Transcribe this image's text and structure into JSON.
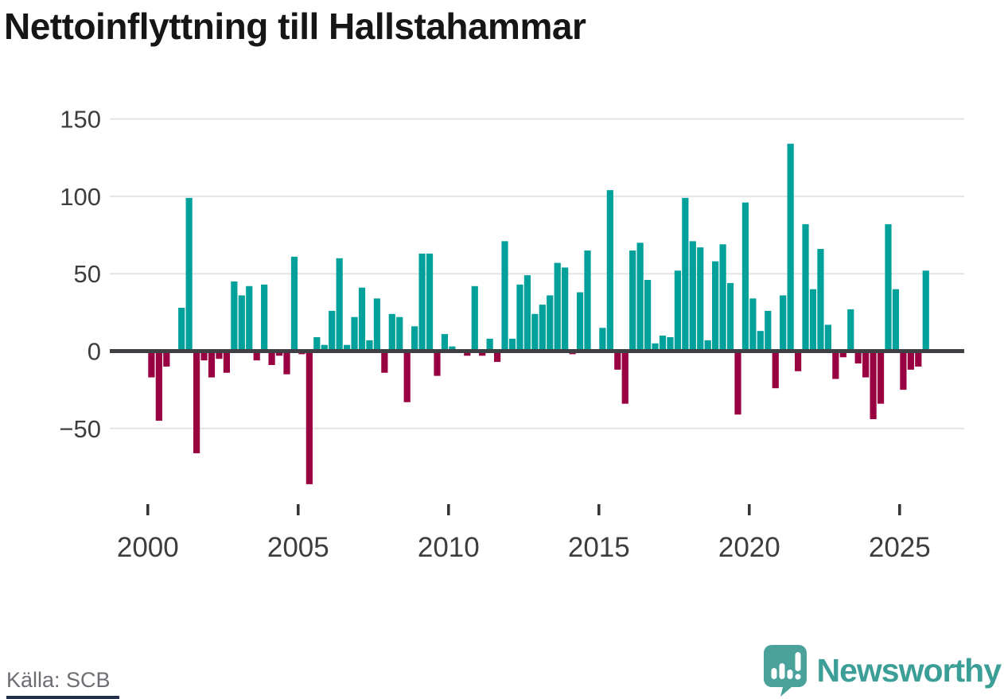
{
  "title": "Nettoinflyttning till Hallstahammar",
  "footer": {
    "source": "Källa: SCB",
    "brand": "Newsworthy"
  },
  "colors": {
    "positive": "#00a09b",
    "negative": "#990041",
    "grid": "#e3e3e3",
    "axis": "#3f4043",
    "tick_label": "#3d3d3d",
    "title": "#161616",
    "source_text": "#6d6d73",
    "brand_teal": "#3b9e97",
    "logo_bubble": "#4aa29a",
    "bottom_strip": "#243049"
  },
  "chart_data": {
    "type": "bar",
    "title": "Nettoinflyttning till Hallstahammar",
    "xlabel": "",
    "ylabel": "",
    "ylim": [
      -90,
      150
    ],
    "grid": "horizontal",
    "legend": "none",
    "frequency": "quarterly",
    "y_ticks": [
      {
        "v": 150,
        "label": "150"
      },
      {
        "v": 100,
        "label": "100"
      },
      {
        "v": 50,
        "label": "50"
      },
      {
        "v": 0,
        "label": "0"
      },
      {
        "v": -50,
        "label": "−50"
      }
    ],
    "x_ticks": [
      {
        "year": 2000,
        "label": "2000"
      },
      {
        "year": 2005,
        "label": "2005"
      },
      {
        "year": 2010,
        "label": "2010"
      },
      {
        "year": 2015,
        "label": "2015"
      },
      {
        "year": 2020,
        "label": "2020"
      },
      {
        "year": 2025,
        "label": "2025"
      }
    ],
    "start_year": 2000,
    "categories": [
      "2000 Q1",
      "2000 Q2",
      "2000 Q3",
      "2000 Q4",
      "2001 Q1",
      "2001 Q2",
      "2001 Q3",
      "2001 Q4",
      "2002 Q1",
      "2002 Q2",
      "2002 Q3",
      "2002 Q4",
      "2003 Q1",
      "2003 Q2",
      "2003 Q3",
      "2003 Q4",
      "2004 Q1",
      "2004 Q2",
      "2004 Q3",
      "2004 Q4",
      "2005 Q1",
      "2005 Q2",
      "2005 Q3",
      "2005 Q4",
      "2006 Q1",
      "2006 Q2",
      "2006 Q3",
      "2006 Q4",
      "2007 Q1",
      "2007 Q2",
      "2007 Q3",
      "2007 Q4",
      "2008 Q1",
      "2008 Q2",
      "2008 Q3",
      "2008 Q4",
      "2009 Q1",
      "2009 Q2",
      "2009 Q3",
      "2009 Q4",
      "2010 Q1",
      "2010 Q2",
      "2010 Q3",
      "2010 Q4",
      "2011 Q1",
      "2011 Q2",
      "2011 Q3",
      "2011 Q4",
      "2012 Q1",
      "2012 Q2",
      "2012 Q3",
      "2012 Q4",
      "2013 Q1",
      "2013 Q2",
      "2013 Q3",
      "2013 Q4",
      "2014 Q1",
      "2014 Q2",
      "2014 Q3",
      "2014 Q4",
      "2015 Q1",
      "2015 Q2",
      "2015 Q3",
      "2015 Q4",
      "2016 Q1",
      "2016 Q2",
      "2016 Q3",
      "2016 Q4",
      "2017 Q1",
      "2017 Q2",
      "2017 Q3",
      "2017 Q4",
      "2018 Q1",
      "2018 Q2",
      "2018 Q3",
      "2018 Q4",
      "2019 Q1",
      "2019 Q2",
      "2019 Q3",
      "2019 Q4",
      "2020 Q1",
      "2020 Q2",
      "2020 Q3",
      "2020 Q4",
      "2021 Q1",
      "2021 Q2",
      "2021 Q3",
      "2021 Q4",
      "2022 Q1",
      "2022 Q2",
      "2022 Q3",
      "2022 Q4",
      "2023 Q1",
      "2023 Q2",
      "2023 Q3",
      "2023 Q4",
      "2024 Q1",
      "2024 Q2",
      "2024 Q3",
      "2024 Q4",
      "2025 Q1",
      "2025 Q2",
      "2025 Q3",
      "2025 Q4"
    ],
    "values": [
      -17,
      -45,
      -10,
      0,
      28,
      99,
      -66,
      -6,
      -17,
      -5,
      -14,
      45,
      36,
      42,
      -6,
      43,
      -9,
      -3,
      -15,
      61,
      -2,
      -86,
      9,
      4,
      26,
      60,
      4,
      22,
      41,
      7,
      34,
      -14,
      24,
      22,
      -33,
      16,
      63,
      63,
      -16,
      11,
      3,
      0,
      -3,
      42,
      -3,
      8,
      -7,
      71,
      8,
      43,
      49,
      24,
      30,
      36,
      57,
      54,
      -2,
      38,
      65,
      0,
      15,
      104,
      -12,
      -34,
      65,
      70,
      46,
      5,
      10,
      9,
      52,
      99,
      71,
      67,
      7,
      58,
      69,
      44,
      -41,
      96,
      34,
      13,
      26,
      -24,
      36,
      134,
      -13,
      82,
      40,
      66,
      17,
      -18,
      -4,
      27,
      -8,
      -17,
      -44,
      -34,
      82,
      40,
      -25,
      -12,
      -10,
      52
    ]
  }
}
